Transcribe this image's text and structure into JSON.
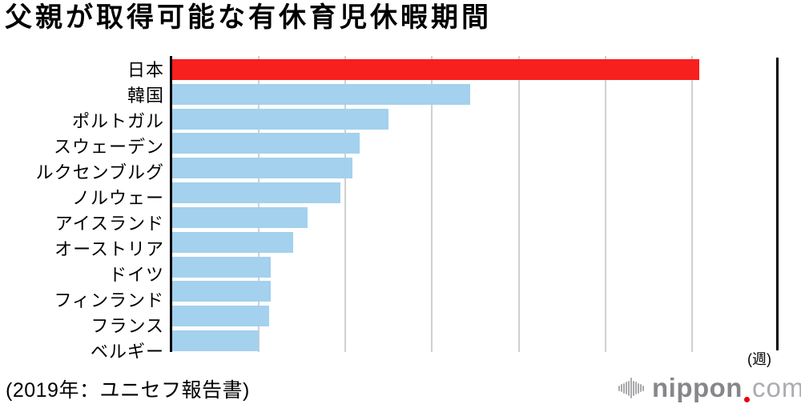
{
  "chart": {
    "title": "父親が取得可能な有休育児休暇期間",
    "unit_label": "(週)",
    "source": "(2019年：ユニセフ報告書)"
  },
  "chart_data": {
    "type": "bar",
    "orientation": "horizontal",
    "title": "父親が取得可能な有休育児休暇期間",
    "xlabel": "週",
    "ylabel": "",
    "categories": [
      "日本",
      "韓国",
      "ポルトガル",
      "スウェーデン",
      "ルクセンブルグ",
      "ノルウェー",
      "アイスランド",
      "オーストリア",
      "ドイツ",
      "フィンランド",
      "フランス",
      "ベルギー"
    ],
    "values": [
      30.4,
      17.2,
      12.5,
      10.8,
      10.4,
      9.7,
      7.8,
      7.0,
      5.7,
      5.7,
      5.6,
      5.0
    ],
    "xlim": [
      0,
      35
    ],
    "gridline_interval": 5,
    "grid": true,
    "tick_labels_visible": false,
    "legend": false,
    "highlight_index": 0,
    "highlight_color": "#f81f1f",
    "bar_color": "#a3d1ee",
    "gridline_color": "#d0d0d0",
    "axis_color": "#000000",
    "unit_label": "(週)",
    "source": "(2019年：ユニセフ報告書)"
  },
  "branding": {
    "logo_icon": "soundwave-bars-icon",
    "logo_text_bold": "nippon",
    "logo_text_light": "com",
    "logo_dot_color": "#e60012",
    "logo_text_bold_color": "#87878a",
    "logo_text_light_color": "#aaacaf",
    "logo_icon_color": "#a9a9ac"
  }
}
